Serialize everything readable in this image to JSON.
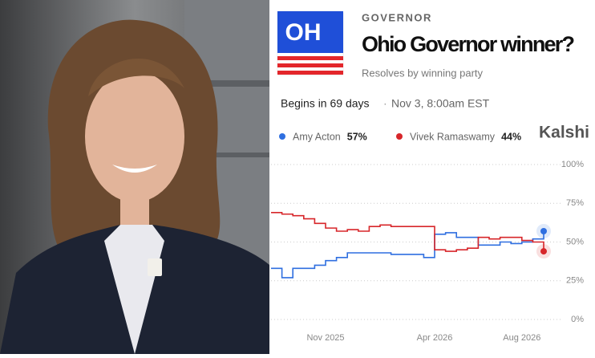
{
  "chart_data": {
    "type": "line",
    "badge": "OH",
    "category_label": "GOVERNOR",
    "title": "Ohio Governor winner?",
    "subtitle": "Resolves by winning party",
    "schedule": "Begins in 69 days",
    "separator": "·",
    "schedule_detail": "Nov 3, 8:00am EST",
    "brand": "Kalshi",
    "categories": [
      null,
      null,
      null,
      null,
      null,
      "Nov 2025",
      null,
      null,
      null,
      null,
      null,
      null,
      null,
      null,
      null,
      "Apr 2026",
      null,
      null,
      null,
      null,
      null,
      null,
      null,
      "Aug 2026",
      null,
      null
    ],
    "series": [
      {
        "name": "Amy Acton",
        "color": "#2f6fe0",
        "values": [
          33,
          27,
          33,
          33,
          35,
          38,
          40,
          43,
          43,
          43,
          43,
          42,
          42,
          42,
          40,
          55,
          56,
          53,
          53,
          48,
          48,
          50,
          49,
          50,
          52,
          57
        ],
        "value_labels": [
          null,
          null,
          null,
          null,
          null,
          null,
          null,
          null,
          null,
          null,
          null,
          null,
          null,
          null,
          null,
          null,
          null,
          null,
          null,
          null,
          null,
          null,
          null,
          null,
          null,
          "57%"
        ]
      },
      {
        "name": "Vivek Ramaswamy",
        "color": "#d7262a",
        "values": [
          69,
          68,
          67,
          65,
          62,
          59,
          57,
          58,
          57,
          60,
          61,
          60,
          60,
          60,
          60,
          45,
          44,
          45,
          46,
          53,
          52,
          53,
          53,
          51,
          50,
          44
        ],
        "value_labels": [
          null,
          null,
          null,
          null,
          null,
          null,
          null,
          null,
          null,
          null,
          null,
          null,
          null,
          null,
          null,
          null,
          null,
          null,
          null,
          null,
          null,
          null,
          null,
          null,
          null,
          "44%"
        ]
      }
    ],
    "ylim": [
      0,
      100
    ],
    "yticks": [
      {
        "value": 0,
        "label": "0%"
      },
      {
        "value": 25,
        "label": "25%"
      },
      {
        "value": 50,
        "label": "50%"
      },
      {
        "value": 75,
        "label": "75%"
      },
      {
        "value": 100,
        "label": "100%"
      }
    ],
    "grid": true
  }
}
